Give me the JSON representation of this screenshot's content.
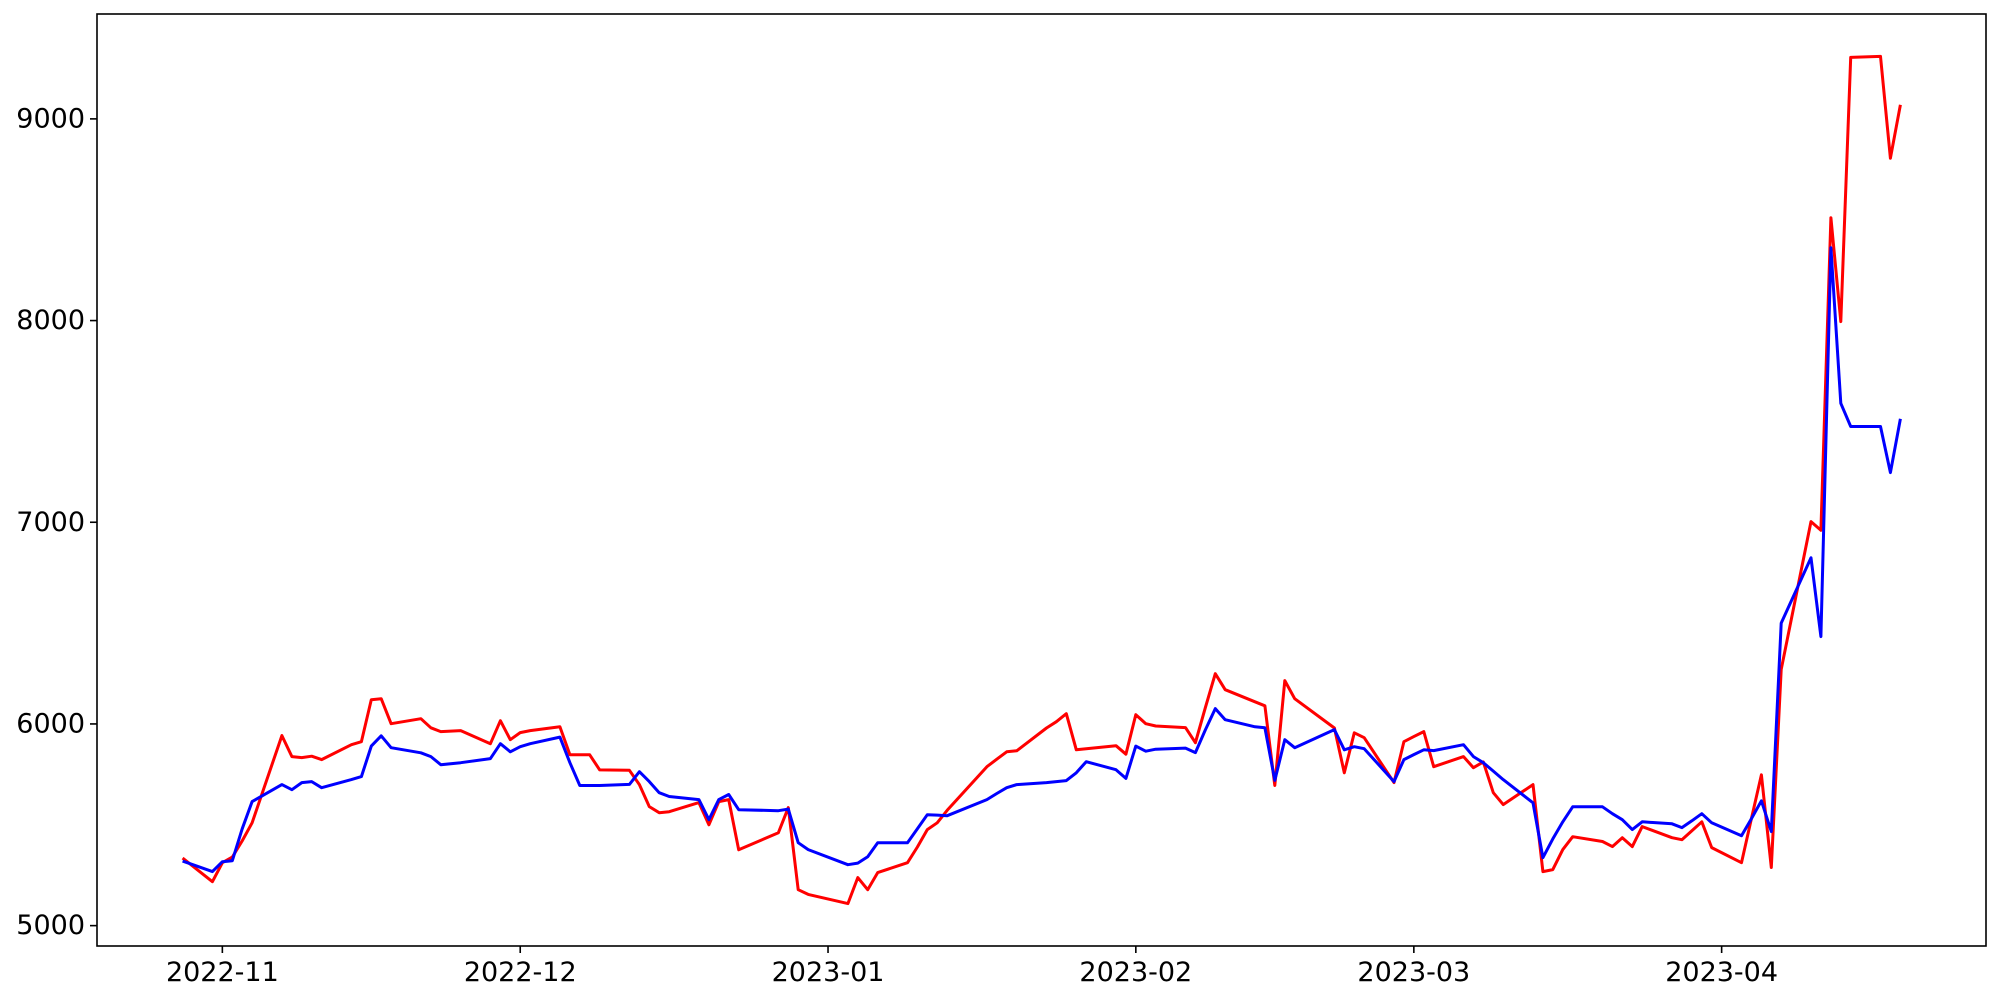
{
  "figure": {
    "background_color": "#ffffff",
    "axis_color": "#000000",
    "tick_label_color": "#000000"
  },
  "chart_data": {
    "type": "line",
    "title": "",
    "xlabel": "",
    "ylabel": "",
    "grid": false,
    "legend": "none",
    "plot_background": "#ffffff",
    "x_tick_labels": [
      "2022-11",
      "2022-12",
      "2023-01",
      "2023-02",
      "2023-03",
      "2023-04"
    ],
    "x_tick_dates": [
      "2022-11-01",
      "2022-12-01",
      "2023-01-01",
      "2023-02-01",
      "2023-03-01",
      "2023-04-01"
    ],
    "y_tick_labels": [
      "5000",
      "6000",
      "7000",
      "8000",
      "9000"
    ],
    "y_ticks": [
      5000,
      6000,
      7000,
      8000,
      9000
    ],
    "ylim": [
      4899,
      9520
    ],
    "xlim": [
      "2022-10-19T09:00:00Z",
      "2023-04-27T15:00:00Z"
    ],
    "x": [
      "2022-10-28",
      "2022-10-31",
      "2022-11-01",
      "2022-11-02",
      "2022-11-03",
      "2022-11-04",
      "2022-11-07",
      "2022-11-08",
      "2022-11-09",
      "2022-11-10",
      "2022-11-11",
      "2022-11-14",
      "2022-11-15",
      "2022-11-16",
      "2022-11-17",
      "2022-11-18",
      "2022-11-21",
      "2022-11-22",
      "2022-11-23",
      "2022-11-25",
      "2022-11-28",
      "2022-11-29",
      "2022-11-30",
      "2022-12-01",
      "2022-12-02",
      "2022-12-05",
      "2022-12-06",
      "2022-12-07",
      "2022-12-08",
      "2022-12-09",
      "2022-12-12",
      "2022-12-13",
      "2022-12-14",
      "2022-12-15",
      "2022-12-16",
      "2022-12-19",
      "2022-12-20",
      "2022-12-21",
      "2022-12-22",
      "2022-12-23",
      "2022-12-27",
      "2022-12-28",
      "2022-12-29",
      "2022-12-30",
      "2023-01-03",
      "2023-01-04",
      "2023-01-05",
      "2023-01-06",
      "2023-01-09",
      "2023-01-10",
      "2023-01-11",
      "2023-01-12",
      "2023-01-13",
      "2023-01-17",
      "2023-01-18",
      "2023-01-19",
      "2023-01-20",
      "2023-01-23",
      "2023-01-24",
      "2023-01-25",
      "2023-01-26",
      "2023-01-27",
      "2023-01-30",
      "2023-01-31",
      "2023-02-01",
      "2023-02-02",
      "2023-02-03",
      "2023-02-06",
      "2023-02-07",
      "2023-02-08",
      "2023-02-09",
      "2023-02-10",
      "2023-02-13",
      "2023-02-14",
      "2023-02-15",
      "2023-02-16",
      "2023-02-17",
      "2023-02-21",
      "2023-02-22",
      "2023-02-23",
      "2023-02-24",
      "2023-02-27",
      "2023-02-28",
      "2023-03-01",
      "2023-03-02",
      "2023-03-03",
      "2023-03-06",
      "2023-03-07",
      "2023-03-08",
      "2023-03-09",
      "2023-03-10",
      "2023-03-13",
      "2023-03-14",
      "2023-03-15",
      "2023-03-16",
      "2023-03-17",
      "2023-03-20",
      "2023-03-21",
      "2023-03-22",
      "2023-03-23",
      "2023-03-24",
      "2023-03-27",
      "2023-03-28",
      "2023-03-29",
      "2023-03-30",
      "2023-03-31",
      "2023-04-03",
      "2023-04-04",
      "2023-04-05",
      "2023-04-06",
      "2023-04-07",
      "2023-04-10",
      "2023-04-11",
      "2023-04-12",
      "2023-04-13",
      "2023-04-14",
      "2023-04-17",
      "2023-04-18",
      "2023-04-19"
    ],
    "series": [
      {
        "name": "red",
        "color": "#ff0000",
        "line_width": 3,
        "values": [
          5335,
          5218,
          5312,
          5340,
          5420,
          5510,
          5942,
          5838,
          5833,
          5840,
          5823,
          5897,
          5912,
          6120,
          6125,
          6001,
          6026,
          5981,
          5962,
          5967,
          5902,
          6016,
          5922,
          5957,
          5967,
          5986,
          5847,
          5847,
          5847,
          5772,
          5770,
          5699,
          5590,
          5560,
          5565,
          5610,
          5500,
          5615,
          5625,
          5376,
          5461,
          5585,
          5178,
          5155,
          5109,
          5238,
          5178,
          5263,
          5312,
          5390,
          5476,
          5510,
          5572,
          5788,
          5825,
          5862,
          5867,
          5980,
          6011,
          6051,
          5872,
          5877,
          5892,
          5850,
          6046,
          6001,
          5990,
          5982,
          5907,
          6080,
          6249,
          6170,
          6110,
          6090,
          5695,
          6215,
          6125,
          5980,
          5758,
          5956,
          5932,
          5709,
          5912,
          5937,
          5962,
          5788,
          5838,
          5783,
          5812,
          5659,
          5600,
          5699,
          5268,
          5278,
          5377,
          5441,
          5417,
          5392,
          5436,
          5392,
          5491,
          5436,
          5426,
          5470,
          5515,
          5387,
          5312,
          5530,
          5748,
          5288,
          6270,
          7003,
          6960,
          8510,
          7995,
          9305,
          9310,
          8805,
          9070
        ]
      },
      {
        "name": "blue",
        "color": "#0000ff",
        "line_width": 3,
        "values": [
          5320,
          5268,
          5317,
          5322,
          5480,
          5615,
          5699,
          5674,
          5709,
          5714,
          5684,
          5724,
          5739,
          5890,
          5941,
          5882,
          5857,
          5838,
          5798,
          5808,
          5828,
          5902,
          5862,
          5887,
          5902,
          5935,
          5808,
          5695,
          5695,
          5695,
          5700,
          5763,
          5714,
          5659,
          5640,
          5625,
          5525,
          5625,
          5650,
          5575,
          5570,
          5578,
          5411,
          5377,
          5302,
          5310,
          5342,
          5411,
          5411,
          5480,
          5550,
          5548,
          5545,
          5625,
          5655,
          5684,
          5699,
          5709,
          5714,
          5719,
          5758,
          5813,
          5773,
          5730,
          5890,
          5865,
          5875,
          5880,
          5858,
          5970,
          6076,
          6021,
          5986,
          5981,
          5720,
          5922,
          5882,
          5972,
          5872,
          5887,
          5877,
          5714,
          5823,
          5848,
          5872,
          5868,
          5897,
          5838,
          5808,
          5766,
          5724,
          5609,
          5337,
          5430,
          5515,
          5589,
          5589,
          5555,
          5525,
          5476,
          5515,
          5505,
          5486,
          5520,
          5555,
          5510,
          5446,
          5530,
          5619,
          5466,
          6500,
          6824,
          6433,
          8361,
          7590,
          7475,
          7475,
          7246,
          7513
        ]
      }
    ]
  }
}
